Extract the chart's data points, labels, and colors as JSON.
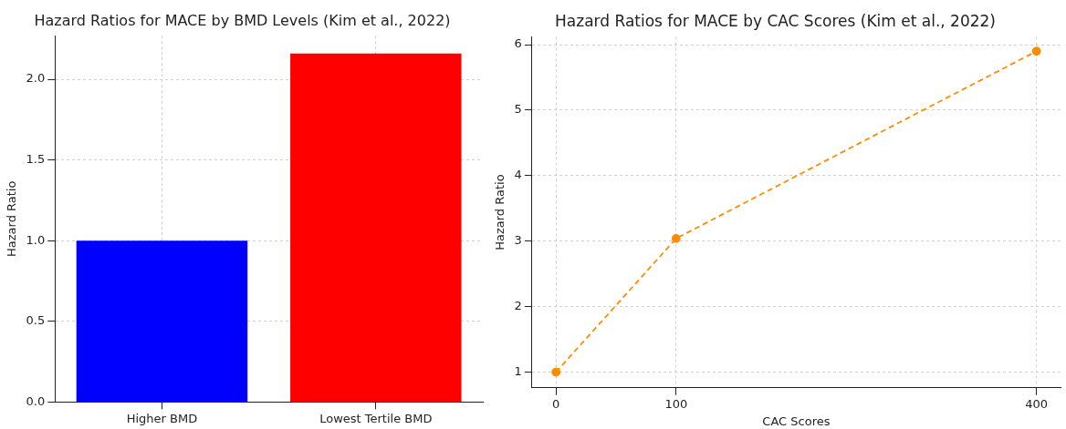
{
  "chart_data": [
    {
      "type": "bar",
      "title": "Hazard Ratios for MACE by BMD Levels (Kim et al., 2022)",
      "ylabel": "Hazard Ratio",
      "categories": [
        "Higher BMD",
        "Lowest Tertile BMD"
      ],
      "values": [
        1.0,
        2.16
      ],
      "colors": [
        "#0000ff",
        "#ff0000"
      ],
      "ylim": [
        0,
        2.27
      ],
      "yticks": [
        {
          "value": 0,
          "label": "0.0"
        },
        {
          "value": 0.5,
          "label": "0.5"
        },
        {
          "value": 1,
          "label": "1.0"
        },
        {
          "value": 1.5,
          "label": "1.5"
        },
        {
          "value": 2,
          "label": "2.0"
        }
      ],
      "grid": true
    },
    {
      "type": "line",
      "title": "Hazard Ratios for MACE by CAC Scores (Kim et al., 2022)",
      "xlabel": "CAC Scores",
      "ylabel": "Hazard Ratio",
      "x": [
        0,
        100,
        400
      ],
      "series": [
        {
          "color": "#ff8c00",
          "values": [
            1,
            3.04,
            5.9
          ]
        }
      ],
      "xlim": [
        -20,
        420
      ],
      "xticks": [
        0,
        100,
        400
      ],
      "ylim": [
        0.76,
        6.12
      ],
      "yticks": [
        1,
        2,
        3,
        4,
        5,
        6
      ],
      "marker": "circle",
      "line_style": "dashed",
      "grid": true
    }
  ]
}
